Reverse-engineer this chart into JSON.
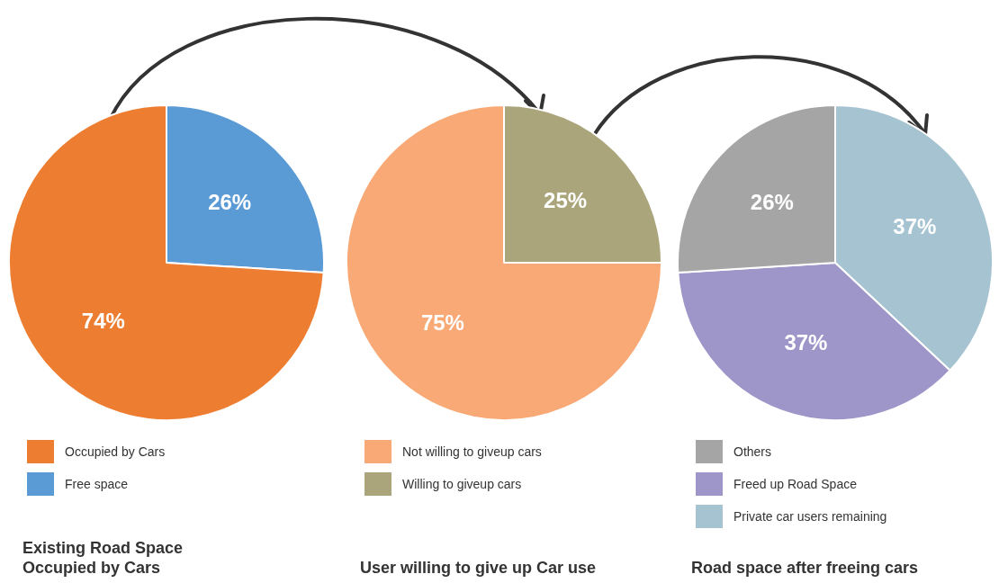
{
  "chart_data": [
    {
      "type": "pie",
      "title": "Existing Road Space Occupied by Cars",
      "categories": [
        "Occupied by Cars",
        "Free space"
      ],
      "values": [
        74,
        26
      ],
      "colors": [
        "#ed7d31",
        "#5b9bd5"
      ],
      "value_labels": [
        "74%",
        "26%"
      ],
      "legend": "bottom"
    },
    {
      "type": "pie",
      "title": "User willing to give up Car use",
      "categories": [
        "Not willing to giveup cars",
        "Willing to giveup cars"
      ],
      "values": [
        75,
        25
      ],
      "colors": [
        "#f8a975",
        "#aaa57a"
      ],
      "value_labels": [
        "75%",
        "25%"
      ],
      "legend": "bottom"
    },
    {
      "type": "pie",
      "title": "Road space after freeing cars",
      "categories": [
        "Others",
        "Freed up Road Space",
        "Private car users remaining"
      ],
      "values": [
        26,
        37,
        37
      ],
      "colors": [
        "#a5a5a5",
        "#9e96c8",
        "#a6c3d1"
      ],
      "value_labels": [
        "26%",
        "37%",
        "37%"
      ],
      "legend": "bottom"
    }
  ]
}
